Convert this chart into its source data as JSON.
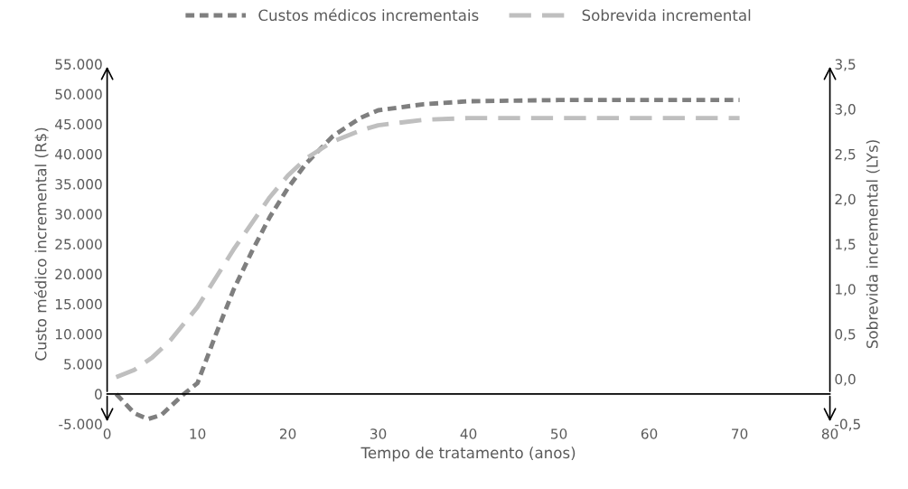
{
  "chart_data": {
    "type": "line",
    "xlabel": "Tempo de tratamento (anos)",
    "ylabel": "Custo médico incremental (R$)",
    "y2label": "Sobrevida incremental (LYs)",
    "legend": "top",
    "line_style": "dashed",
    "grid": false,
    "xlim": [
      0,
      80
    ],
    "xticks": [
      0,
      10,
      20,
      30,
      40,
      50,
      60,
      70,
      80
    ],
    "ylim": [
      -5000,
      55000
    ],
    "yticks": [
      {
        "value": -5000,
        "label": "-5.000"
      },
      0,
      {
        "value": 5000,
        "label": "5.000"
      },
      {
        "value": 10000,
        "label": "10.000"
      },
      {
        "value": 15000,
        "label": "15.000"
      },
      {
        "value": 20000,
        "label": "20.000"
      },
      {
        "value": 25000,
        "label": "25.000"
      },
      {
        "value": 30000,
        "label": "30.000"
      },
      {
        "value": 35000,
        "label": "35.000"
      },
      {
        "value": 40000,
        "label": "40.000"
      },
      {
        "value": 45000,
        "label": "45.000"
      },
      {
        "value": 50000,
        "label": "50.000"
      },
      {
        "value": 55000,
        "label": "55.000"
      }
    ],
    "y2lim": [
      -0.5,
      3.5
    ],
    "y2ticks": [
      {
        "value": -0.5,
        "label": "-0,5"
      },
      {
        "value": 0,
        "label": "0,0"
      },
      {
        "value": 0.5,
        "label": "0,5"
      },
      {
        "value": 1,
        "label": "1,0"
      },
      {
        "value": 1.5,
        "label": "1,5"
      },
      {
        "value": 2,
        "label": "2,0"
      },
      {
        "value": 2.5,
        "label": "2,5"
      },
      {
        "value": 3,
        "label": "3,0"
      },
      {
        "value": 3.5,
        "label": "3,5"
      }
    ],
    "series": [
      {
        "name": "Custos médicos incrementais",
        "color": "#7f7f7f",
        "x": [
          1,
          3,
          4.5,
          6,
          8.5,
          10,
          12,
          14,
          16,
          18,
          20,
          22,
          25,
          28,
          30,
          35,
          40,
          50,
          60,
          70
        ],
        "values": [
          0,
          -3200,
          -4200,
          -3500,
          0,
          1800,
          9800,
          17400,
          23700,
          29500,
          34300,
          38400,
          43000,
          46000,
          47300,
          48300,
          48800,
          49000,
          49000,
          49000
        ]
      },
      {
        "name": "Sobrevida incremental",
        "color": "#bfbfbf",
        "axis": "y2",
        "x": [
          1,
          3,
          5,
          7,
          10,
          12,
          14,
          16,
          18,
          20,
          22,
          25,
          28,
          30,
          35,
          40,
          50,
          60,
          70
        ],
        "values": [
          0.02,
          0.1,
          0.24,
          0.43,
          0.8,
          1.12,
          1.44,
          1.73,
          2.02,
          2.26,
          2.45,
          2.64,
          2.76,
          2.82,
          2.88,
          2.9,
          2.9,
          2.9,
          2.9
        ]
      }
    ]
  }
}
